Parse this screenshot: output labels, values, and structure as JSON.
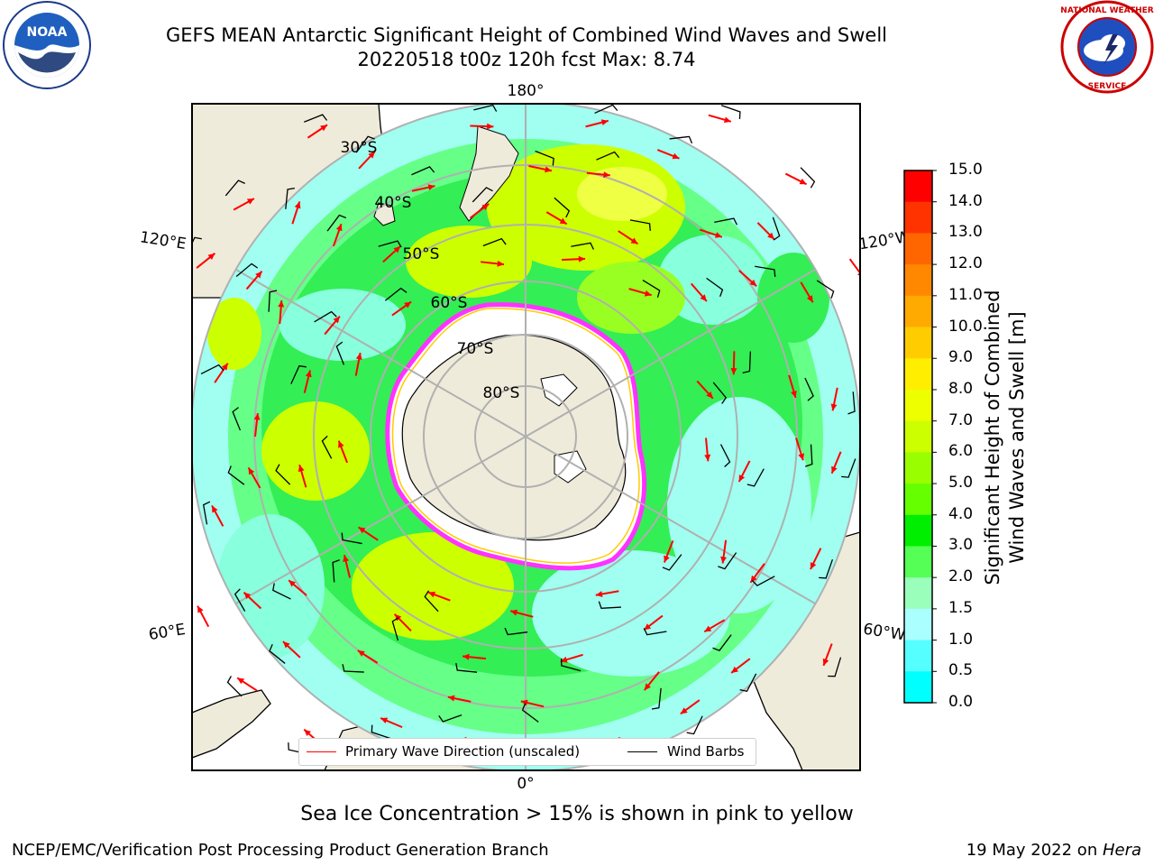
{
  "title": {
    "line1": "GEFS MEAN Antarctic Significant Height of Combined Wind Waves and Swell",
    "line2": "20220518 t00z 120h fcst   Max: 8.74"
  },
  "logos": {
    "left": {
      "icon": "noaa-logo",
      "text": "NOAA"
    },
    "right": {
      "icon": "nws-logo",
      "text": "NATIONAL WEATHER SERVICE"
    }
  },
  "map": {
    "projection": "south-polar-stereographic",
    "longitude_labels": {
      "top": "180°",
      "bottom": "0°",
      "upper_left": "120°E",
      "upper_right": "120°W",
      "lower_left": "60°E",
      "lower_right": "60°W"
    },
    "latitude_labels": [
      "30°S",
      "40°S",
      "50°S",
      "60°S",
      "70°S",
      "80°S"
    ],
    "colors": {
      "land": "#efebdb",
      "ice_edge": "#ff33ff",
      "ice_inner": "#ffcc00",
      "wave_arrow": "#ff0000",
      "wind_barb": "#000000",
      "grid": "#b0b0b0"
    }
  },
  "legend": {
    "primary_wave": "Primary Wave Direction (unscaled)",
    "wind_barbs": "Wind Barbs"
  },
  "colorbar": {
    "label_line1": "Significant Height of Combined",
    "label_line2": "Wind Waves and Swell [m]",
    "ticks": [
      "15.0",
      "14.0",
      "13.0",
      "12.0",
      "11.0",
      "10.0",
      "9.0",
      "8.0",
      "7.0",
      "6.0",
      "5.0",
      "4.0",
      "3.0",
      "2.0",
      "1.5",
      "1.0",
      "0.5",
      "0.0"
    ],
    "colors": [
      "#ff0000",
      "#ff3300",
      "#ff6600",
      "#ff8800",
      "#ffaa00",
      "#ffcc00",
      "#ffee00",
      "#eeff00",
      "#ccff00",
      "#99ff00",
      "#66ff00",
      "#00ee00",
      "#55ff55",
      "#99ffbb",
      "#aaffff",
      "#55ffff",
      "#00ffff",
      "#0088ff",
      "#0000ff"
    ]
  },
  "caption": "Sea Ice Concentration > 15% is shown in pink to yellow",
  "footer": {
    "left": "NCEP/EMC/Verification Post Processing Product Generation Branch",
    "right_prefix": "19 May 2022 on ",
    "right_host": "Hera"
  }
}
